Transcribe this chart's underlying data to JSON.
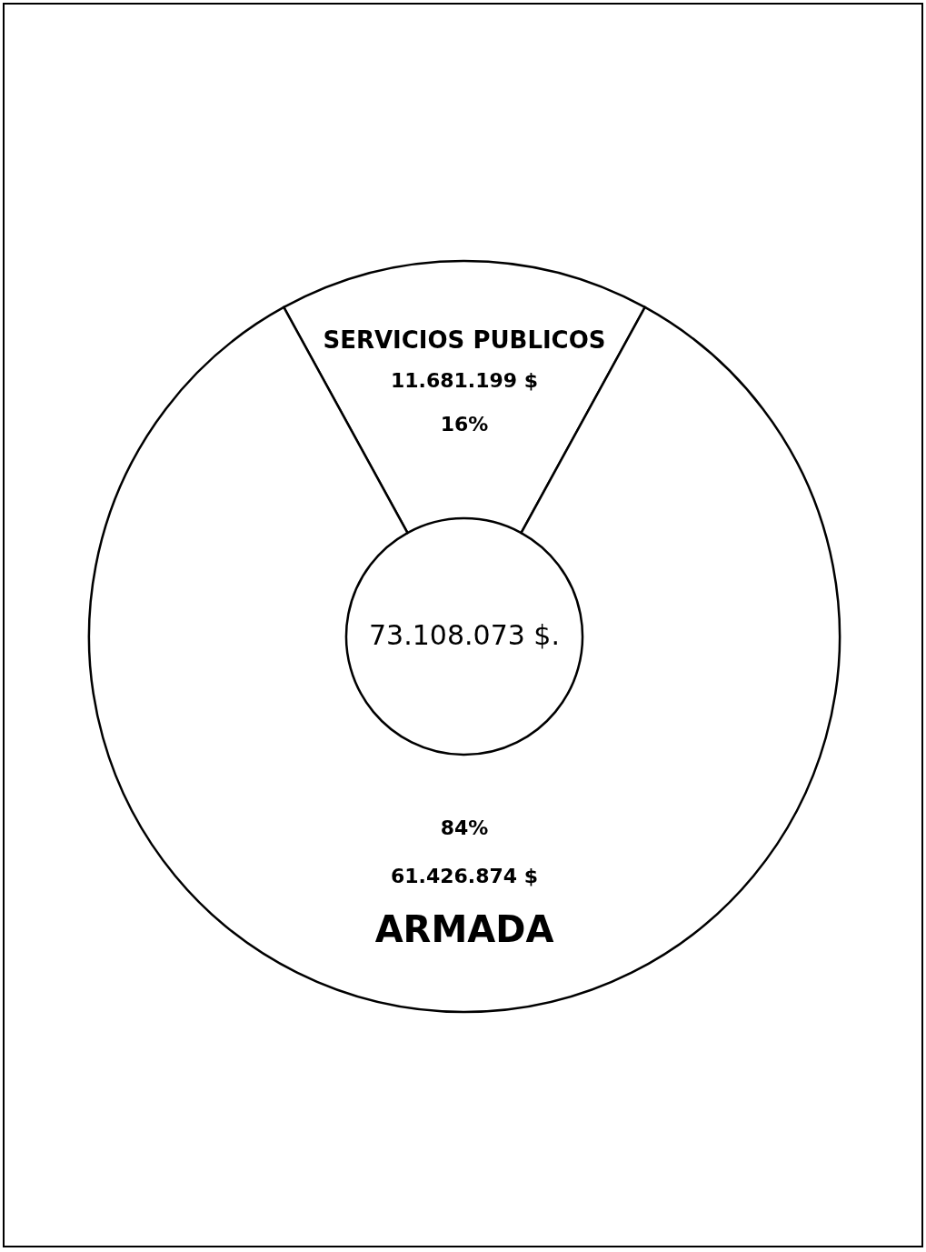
{
  "chart_data": {
    "type": "donut",
    "categories": [
      "SERVICIOS PUBLICOS",
      "ARMADA"
    ],
    "values": [
      11681199,
      61426874
    ],
    "colors": [
      "#ffffff",
      "#ffffff"
    ],
    "value_labels": [
      "11.681.199 $",
      "61.426.874 $"
    ],
    "annotations": [
      "16%",
      "84%",
      "73.108.073 $."
    ]
  }
}
